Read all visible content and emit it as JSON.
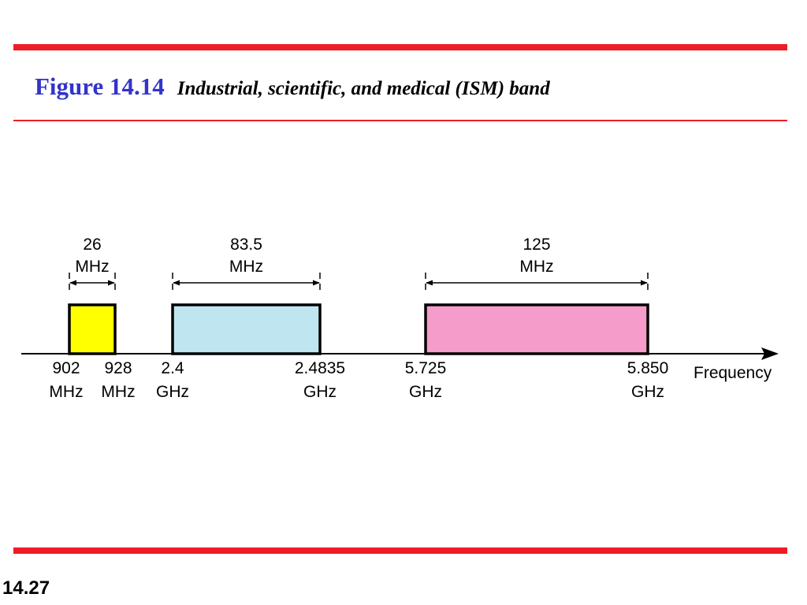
{
  "slide": {
    "figure_number": "Figure 14.14",
    "caption": "Industrial, scientific, and medical (ISM) band",
    "page_number": "14.27"
  },
  "diagram": {
    "axis_label": "Frequency",
    "bands": [
      {
        "width_lines": [
          "26",
          "MHz"
        ],
        "start_lines": [
          "902",
          "MHz"
        ],
        "end_lines": [
          "928",
          "MHz"
        ],
        "fill": "#ffff00"
      },
      {
        "width_lines": [
          "83.5",
          "MHz"
        ],
        "start_lines": [
          "2.4",
          "GHz"
        ],
        "end_lines": [
          "2.4835",
          "GHz"
        ],
        "fill": "#bfe6f0"
      },
      {
        "width_lines": [
          "125",
          "MHz"
        ],
        "start_lines": [
          "5.725",
          "GHz"
        ],
        "end_lines": [
          "5.850",
          "GHz"
        ],
        "fill": "#f69cca"
      }
    ]
  }
}
